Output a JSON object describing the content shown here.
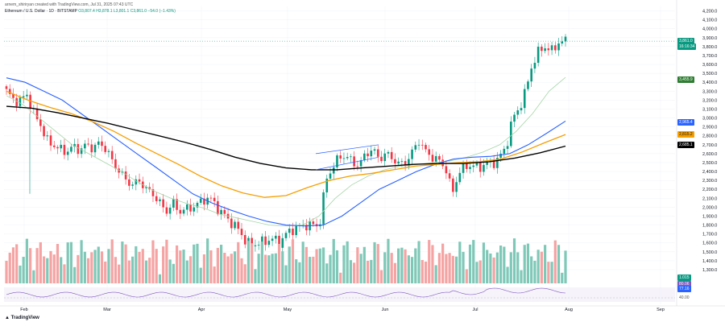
{
  "header": {
    "created_by": "arnem_shiriryan created with TradingView.com, Jul 31, 2025 07:43 UTC",
    "symbol_line": "Ethereum / U.S. Dollar · 1D · BITSTAMP",
    "ohlc": "O3,807.4  H3,878.1  L3,801.1  C3,861.0  −54.0 (−1.43%)",
    "brand": "TradingView"
  },
  "price_labels": {
    "last": "3,861.0",
    "countdown": "16:16:34",
    "ma1": "3,455.9",
    "ma2": "2,965.4",
    "ma3": "2,815.2",
    "ma4": "2,685.1",
    "volume": "1.015",
    "rsi1": "80.06",
    "rsi2": "77.16",
    "rsi_level": "40.00"
  },
  "colors": {
    "up": "#089981",
    "down": "#f23645",
    "vol_up": "#7fc8b8",
    "vol_down": "#f5a3a3",
    "ma_light_green": "#a5d6a7",
    "ma_blue": "#2962ff",
    "ma_orange": "#f59f00",
    "ma_black": "#000000",
    "rsi": "#7e57c2"
  },
  "chart_data": {
    "type": "candlestick",
    "x_ticks": [
      "Feb",
      "Mar",
      "Apr",
      "May",
      "Jun",
      "Jul",
      "Aug",
      "Sep"
    ],
    "y_ticks": [
      "4,200.0",
      "4,100.0",
      "4,000.0",
      "3,900.0",
      "3,800.0",
      "3,700.0",
      "3,600.0",
      "3,500.0",
      "3,400.0",
      "3,300.0",
      "3,200.0",
      "3,100.0",
      "3,000.0",
      "2,900.0",
      "2,800.0",
      "2,700.0",
      "2,600.0",
      "2,500.0",
      "2,400.0",
      "2,300.0",
      "2,200.0",
      "2,100.0",
      "2,000.0",
      "1,900.0",
      "1,800.0",
      "1,700.0",
      "1,600.0",
      "1,500.0",
      "1,400.0",
      "1,300.0"
    ],
    "ylim": [
      1300,
      4250
    ],
    "close_path": [
      3300,
      3210,
      3180,
      3280,
      3060,
      2950,
      2750,
      2700,
      2650,
      2620,
      2680,
      2640,
      2700,
      2660,
      2720,
      2650,
      2500,
      2400,
      2300,
      2250,
      2300,
      2200,
      2150,
      2050,
      1950,
      2050,
      1950,
      1980,
      2000,
      2050,
      2100,
      2080,
      1950,
      1900,
      1800,
      1750,
      1600,
      1580,
      1600,
      1620,
      1650,
      1600,
      1700,
      1750,
      1780,
      1800,
      1800,
      1790,
      2300,
      2450,
      2560,
      2580,
      2500,
      2470,
      2600,
      2650,
      2540,
      2600,
      2550,
      2480,
      2500,
      2620,
      2750,
      2620,
      2560,
      2520,
      2440,
      2150,
      2400,
      2450,
      2480,
      2430,
      2500,
      2480,
      2560,
      2650,
      2990,
      3100,
      3300,
      3600,
      3750,
      3800,
      3750,
      3850,
      3861
    ],
    "series": [
      {
        "name": "MA1",
        "values": [
          3250,
          3150,
          3000,
          2850,
          2700,
          2600,
          2500,
          2400,
          2280,
          2180,
          2100,
          2040,
          1990,
          1920,
          1880,
          1840,
          1800,
          1790,
          1800,
          1900,
          2100,
          2250,
          2350,
          2420,
          2460,
          2480,
          2500,
          2520,
          2560,
          2620,
          2700,
          2850,
          3050,
          3300,
          3455
        ]
      },
      {
        "name": "MA2",
        "values": [
          3450,
          3400,
          3300,
          3200,
          3050,
          2900,
          2750,
          2600,
          2450,
          2300,
          2150,
          2050,
          1970,
          1900,
          1840,
          1800,
          1790,
          1800,
          1900,
          2050,
          2200,
          2300,
          2400,
          2480,
          2540,
          2560,
          2570,
          2600,
          2700,
          2830,
          2965
        ]
      },
      {
        "name": "MA3",
        "values": [
          3300,
          3200,
          3120,
          3050,
          2960,
          2850,
          2720,
          2600,
          2480,
          2350,
          2240,
          2160,
          2110,
          2130,
          2220,
          2300,
          2350,
          2380,
          2420,
          2460,
          2480,
          2500,
          2510,
          2540,
          2620,
          2720,
          2815
        ]
      },
      {
        "name": "MA4",
        "values": [
          3130,
          3110,
          3060,
          3000,
          2940,
          2870,
          2800,
          2730,
          2650,
          2560,
          2490,
          2440,
          2420,
          2420,
          2440,
          2460,
          2480,
          2490,
          2490,
          2510,
          2550,
          2610,
          2685
        ]
      }
    ]
  }
}
